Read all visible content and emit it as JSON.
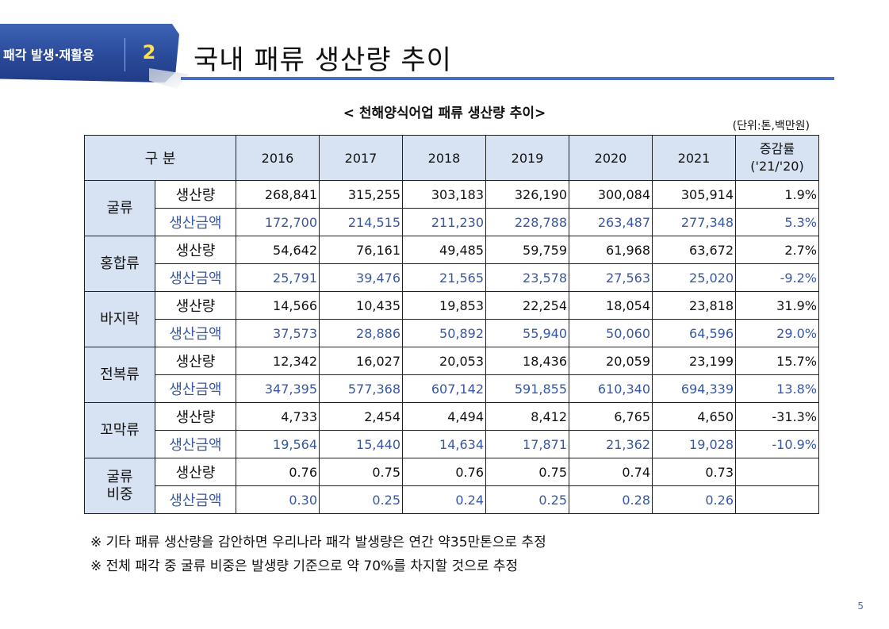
{
  "header": {
    "section_label": "패각 발생·재활용",
    "section_number": "2",
    "title": "국내 패류 생산량 추이",
    "accent_color": "#2a4a9a"
  },
  "table_title": "< 천해양식어업 패류 생산량 추이>",
  "unit_note": "(단위:톤,백만원)",
  "columns": {
    "category": "구 분",
    "years": [
      "2016",
      "2017",
      "2018",
      "2019",
      "2020",
      "2021"
    ],
    "rate_line1": "증감률",
    "rate_line2": "('21/'20)"
  },
  "groups": [
    {
      "name": "굴류",
      "rows": [
        {
          "metric": "생산량",
          "values": [
            "268,841",
            "315,255",
            "303,183",
            "326,190",
            "300,084",
            "305,914"
          ],
          "rate": "1.9%"
        },
        {
          "metric": "생산금액",
          "values": [
            "172,700",
            "214,515",
            "211,230",
            "228,788",
            "263,487",
            "277,348"
          ],
          "rate": "5.3%"
        }
      ]
    },
    {
      "name": "홍합류",
      "rows": [
        {
          "metric": "생산량",
          "values": [
            "54,642",
            "76,161",
            "49,485",
            "59,759",
            "61,968",
            "63,672"
          ],
          "rate": "2.7%"
        },
        {
          "metric": "생산금액",
          "values": [
            "25,791",
            "39,476",
            "21,565",
            "23,578",
            "27,563",
            "25,020"
          ],
          "rate": "-9.2%"
        }
      ]
    },
    {
      "name": "바지락",
      "rows": [
        {
          "metric": "생산량",
          "values": [
            "14,566",
            "10,435",
            "19,853",
            "22,254",
            "18,054",
            "23,818"
          ],
          "rate": "31.9%"
        },
        {
          "metric": "생산금액",
          "values": [
            "37,573",
            "28,886",
            "50,892",
            "55,940",
            "50,060",
            "64,596"
          ],
          "rate": "29.0%"
        }
      ]
    },
    {
      "name": "전복류",
      "rows": [
        {
          "metric": "생산량",
          "values": [
            "12,342",
            "16,027",
            "20,053",
            "18,436",
            "20,059",
            "23,199"
          ],
          "rate": "15.7%"
        },
        {
          "metric": "생산금액",
          "values": [
            "347,395",
            "577,368",
            "607,142",
            "591,855",
            "610,340",
            "694,339"
          ],
          "rate": "13.8%"
        }
      ]
    },
    {
      "name": "꼬막류",
      "rows": [
        {
          "metric": "생산량",
          "values": [
            "4,733",
            "2,454",
            "4,494",
            "8,412",
            "6,765",
            "4,650"
          ],
          "rate": "-31.3%"
        },
        {
          "metric": "생산금액",
          "values": [
            "19,564",
            "15,440",
            "14,634",
            "17,871",
            "21,362",
            "19,028"
          ],
          "rate": "-10.9%"
        }
      ]
    },
    {
      "name": "굴류 비중",
      "rows": [
        {
          "metric": "생산량",
          "values": [
            "0.76",
            "0.75",
            "0.76",
            "0.75",
            "0.74",
            "0.73"
          ],
          "rate": ""
        },
        {
          "metric": "생산금액",
          "values": [
            "0.30",
            "0.25",
            "0.24",
            "0.25",
            "0.28",
            "0.26"
          ],
          "rate": ""
        }
      ]
    }
  ],
  "footnotes": [
    "※ 기타 패류 생산량을 감안하면 우리나라 패각 발생량은 연간 약35만톤으로 추정",
    "※ 전체 패각 중 굴류 비중은 발생량 기준으로 약 70%를 차지할 것으로 추정"
  ],
  "page_number": "5"
}
